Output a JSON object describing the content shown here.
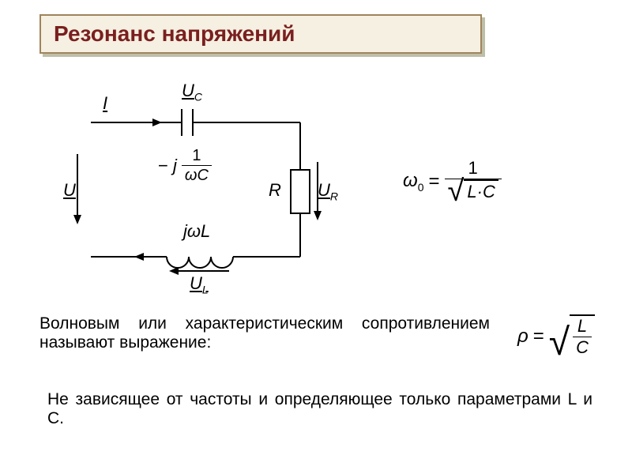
{
  "title": "Резонанс напряжений",
  "colors": {
    "title_border": "#a0845c",
    "title_text": "#7a1f1f",
    "title_bg": "#f5f0e1",
    "shadow": "#bfbfa8",
    "line": "#000000",
    "text": "#000000",
    "page_bg": "#ffffff"
  },
  "fonts": {
    "title_size": 28,
    "label_size": 22,
    "body_size": 21,
    "eq_size": 24
  },
  "circuit": {
    "labels": {
      "I": "I",
      "U": "U",
      "UC": "U",
      "UC_sub": "C",
      "UR": "U",
      "UR_sub": "R",
      "UL": "U",
      "UL_sub": "L",
      "R": "R",
      "ZC_prefix": "− j",
      "ZC_num": "1",
      "ZC_den_w": "ω",
      "ZC_den_C": "C",
      "ZL_prefix": "j",
      "ZL_w": "ω",
      "ZL_L": "L"
    },
    "line_width": 2
  },
  "equation1": {
    "lhs_w": "ω",
    "lhs_sub": "0",
    "eq": "=",
    "num": "1",
    "den_L": "L",
    "den_dot": "·",
    "den_C": "C"
  },
  "para1": "Волновым или характеристическим сопротивлением называют выражение:",
  "equation2": {
    "lhs": "ρ",
    "eq": "=",
    "num": "L",
    "den": "C"
  },
  "para2": "Не зависящее от частоты и определяющее только параметрами L и С."
}
